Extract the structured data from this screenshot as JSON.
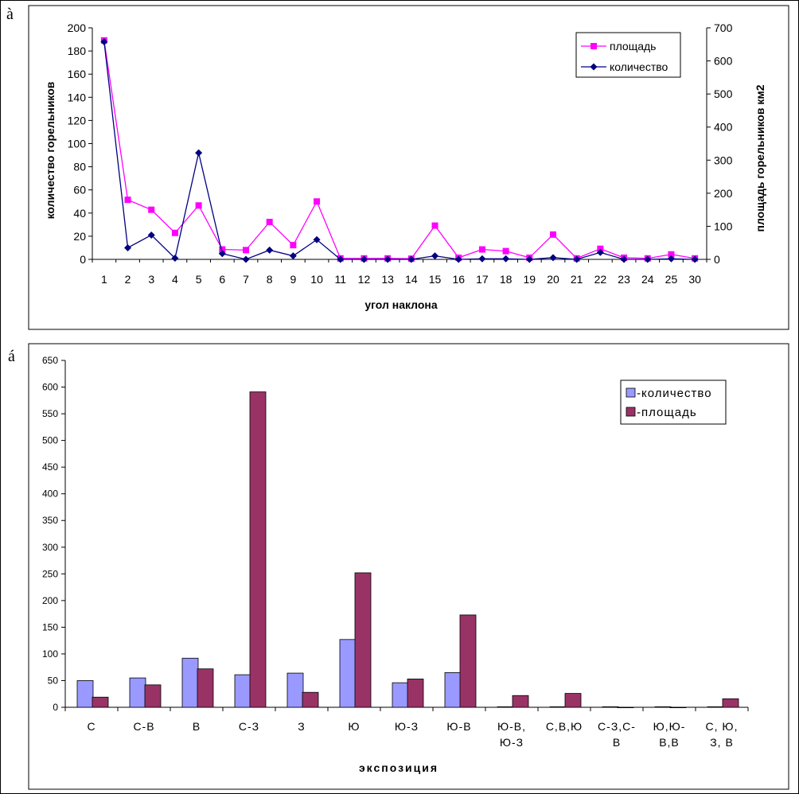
{
  "panels": {
    "a": "à",
    "b": "á"
  },
  "chart_data": [
    {
      "type": "line",
      "x": [
        1,
        2,
        3,
        4,
        5,
        6,
        7,
        8,
        9,
        10,
        11,
        12,
        13,
        14,
        15,
        16,
        17,
        18,
        19,
        20,
        21,
        22,
        23,
        24,
        25,
        30
      ],
      "xlabel": "угол наклона",
      "ylabel_left": "количество горельников",
      "ylabel_right": "площадь горельников км2",
      "ylim_left": [
        0,
        200
      ],
      "ylim_right": [
        0,
        700
      ],
      "yticks_left": [
        0,
        20,
        40,
        60,
        80,
        100,
        120,
        140,
        160,
        180,
        200
      ],
      "yticks_right": [
        0,
        100,
        200,
        300,
        400,
        500,
        600,
        700
      ],
      "legend_position": "top-right",
      "series": [
        {
          "name": "площадь",
          "axis": "right",
          "color": "#ff00ff",
          "marker": "square",
          "values": [
            662,
            180,
            150,
            80,
            163,
            30,
            28,
            113,
            43,
            175,
            3,
            3,
            3,
            2,
            102,
            5,
            30,
            25,
            5,
            75,
            3,
            32,
            5,
            3,
            15,
            3
          ]
        },
        {
          "name": "количество",
          "axis": "left",
          "color": "#000080",
          "marker": "diamond",
          "values": [
            188,
            10,
            21,
            1,
            92,
            5,
            0,
            8,
            3,
            17,
            0,
            0,
            0,
            0,
            3,
            0,
            0.5,
            0.5,
            0,
            1.5,
            0,
            6,
            0,
            0,
            0.5,
            0
          ]
        }
      ]
    },
    {
      "type": "bar",
      "categories": [
        [
          "С"
        ],
        [
          "С-В"
        ],
        [
          "В"
        ],
        [
          "С-З"
        ],
        [
          "З"
        ],
        [
          "Ю"
        ],
        [
          "Ю-З"
        ],
        [
          "Ю-В"
        ],
        [
          "Ю-В,",
          "Ю-З"
        ],
        [
          "С,В,Ю"
        ],
        [
          "С-З,С-",
          "В"
        ],
        [
          "Ю,Ю-",
          "В,В"
        ],
        [
          "С, Ю,",
          "З, В"
        ]
      ],
      "xlabel": "экспозиция",
      "ylim": [
        0,
        650
      ],
      "yticks": [
        0,
        50,
        100,
        150,
        200,
        250,
        300,
        350,
        400,
        450,
        500,
        550,
        600,
        650
      ],
      "legend_position": "top-right",
      "series": [
        {
          "name": "-количество",
          "color": "#9999ff",
          "values": [
            50,
            55,
            92,
            61,
            64,
            127,
            46,
            65,
            1,
            1,
            1,
            1,
            1
          ]
        },
        {
          "name": "-площадь",
          "color": "#993366",
          "values": [
            19,
            42,
            72,
            591,
            28,
            252,
            53,
            173,
            22,
            26,
            0,
            0,
            16
          ]
        }
      ]
    }
  ]
}
